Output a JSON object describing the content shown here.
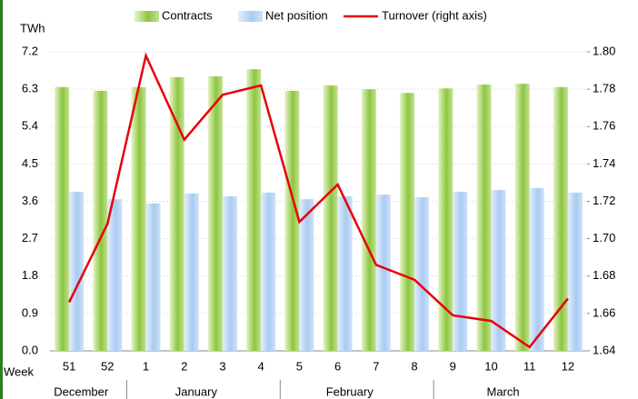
{
  "chart_data": {
    "type": "bar",
    "ylabel": "TWh",
    "xlabel": "Week",
    "categories": [
      "51",
      "52",
      "1",
      "2",
      "3",
      "4",
      "5",
      "6",
      "7",
      "8",
      "9",
      "10",
      "11",
      "12"
    ],
    "x_groups": [
      {
        "label": "December",
        "count": 2
      },
      {
        "label": "January",
        "count": 4
      },
      {
        "label": "February",
        "count": 4
      },
      {
        "label": "March",
        "count": 4
      }
    ],
    "series": [
      {
        "name": "Contracts",
        "color": "#8cc63f",
        "values": [
          6.35,
          6.26,
          6.35,
          6.59,
          6.61,
          6.78,
          6.26,
          6.39,
          6.3,
          6.21,
          6.32,
          6.41,
          6.43,
          6.35
        ]
      },
      {
        "name": "Net position",
        "color": "#a9cbf2",
        "values": [
          3.83,
          3.65,
          3.55,
          3.79,
          3.72,
          3.81,
          3.65,
          3.72,
          3.76,
          3.7,
          3.83,
          3.87,
          3.92,
          3.81
        ]
      },
      {
        "name": "Turnover (right axis)",
        "color": "#e8000b",
        "type": "line",
        "axis": "y2",
        "values": [
          1.666,
          1.708,
          1.798,
          1.753,
          1.777,
          1.782,
          1.709,
          1.729,
          1.686,
          1.678,
          1.659,
          1.656,
          1.642,
          1.668
        ]
      }
    ],
    "ylim": [
      0,
      7.2
    ],
    "yticks": [
      {
        "value": 0,
        "label": "0.0"
      },
      0.9,
      1.8,
      2.7,
      3.6,
      4.5,
      5.4,
      6.3,
      7.2
    ],
    "y2lim": [
      1.64,
      1.8
    ],
    "y2ticks": [
      1.64,
      1.66,
      1.68,
      {
        "value": 1.7,
        "label": "1.70"
      },
      1.72,
      1.74,
      1.76,
      1.78,
      {
        "value": 1.8,
        "label": "1.80"
      }
    ],
    "grid": true
  }
}
